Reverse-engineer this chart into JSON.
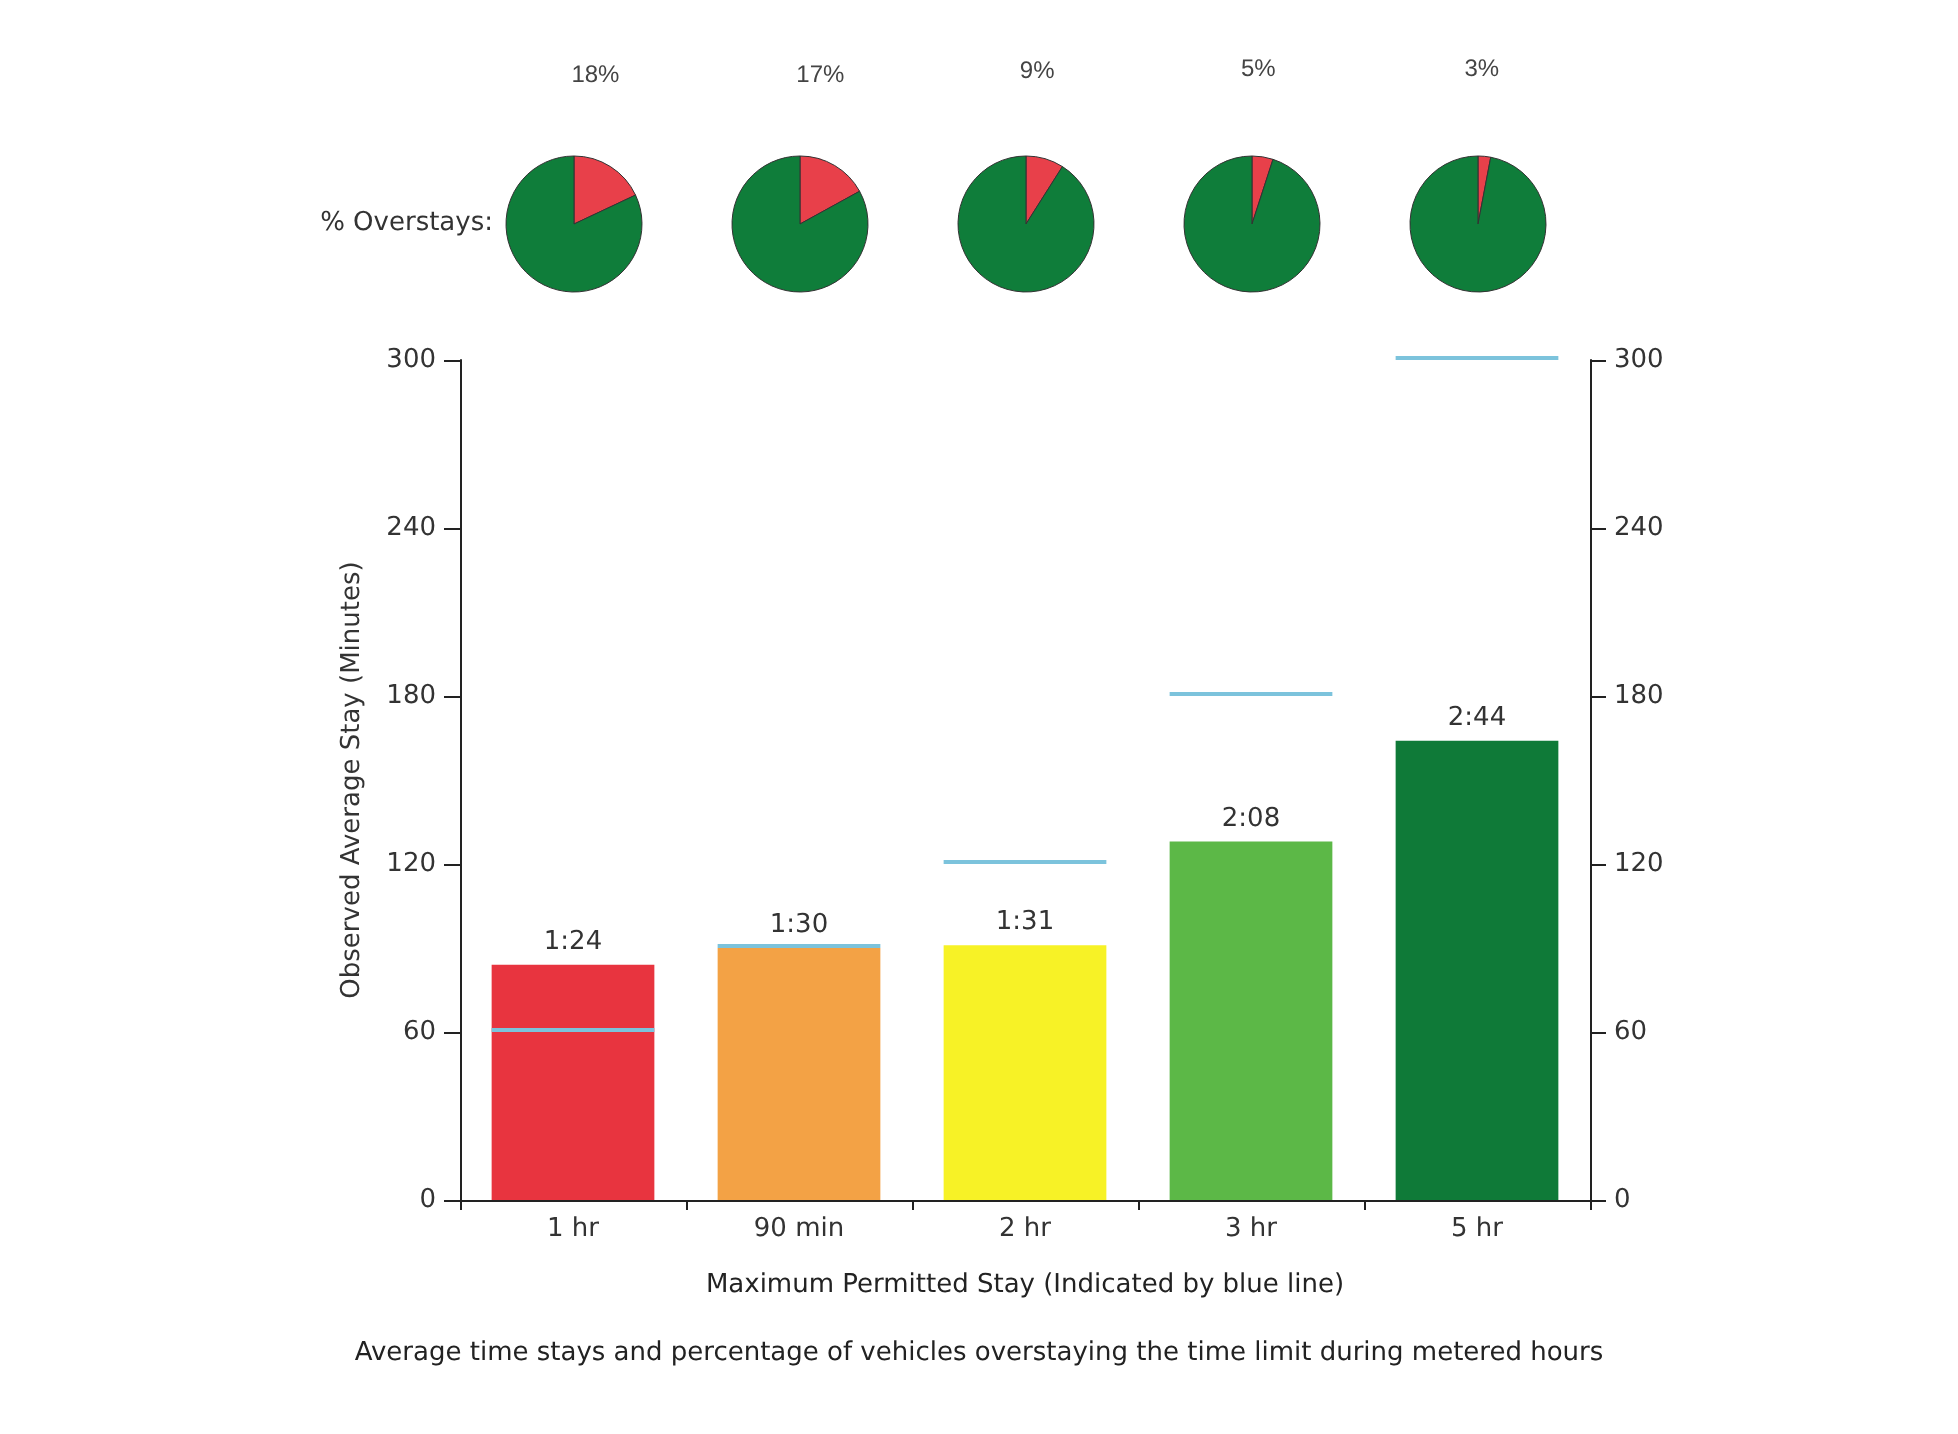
{
  "chart_data": [
    {
      "type": "pie",
      "categories": [
        null,
        null
      ],
      "values": [
        18,
        82
      ],
      "colors": [
        "#e8404a",
        "#0f7d3a"
      ],
      "value_labels": [
        "18%",
        null
      ],
      "annotations": [
        "% Overstays:"
      ]
    },
    {
      "type": "pie",
      "categories": [
        null,
        null
      ],
      "values": [
        17,
        83
      ],
      "colors": [
        "#e8404a",
        "#0f7d3a"
      ],
      "value_labels": [
        "17%",
        null
      ]
    },
    {
      "type": "pie",
      "categories": [
        null,
        null
      ],
      "values": [
        9,
        91
      ],
      "colors": [
        "#e8404a",
        "#0f7d3a"
      ],
      "value_labels": [
        "9%",
        null
      ]
    },
    {
      "type": "pie",
      "categories": [
        null,
        null
      ],
      "values": [
        5,
        95
      ],
      "colors": [
        "#e8404a",
        "#0f7d3a"
      ],
      "value_labels": [
        "5%",
        null
      ]
    },
    {
      "type": "pie",
      "categories": [
        null,
        null
      ],
      "values": [
        3,
        97
      ],
      "colors": [
        "#e8404a",
        "#0f7d3a"
      ],
      "value_labels": [
        "3%",
        null
      ]
    },
    {
      "type": "bar",
      "xlabel": "Maximum Permitted Stay (Indicated by blue line)",
      "ylabel": "Observed Average Stay (Minutes)",
      "categories": [
        "1 hr",
        "90 min",
        "2 hr",
        "3 hr",
        "5 hr"
      ],
      "series": [
        {
          "type": "bar",
          "colors": [
            "#e8343f",
            "#f3a245",
            "#f7f226",
            "#5cb847",
            "#0f7a38"
          ],
          "values": [
            84,
            90,
            91,
            128,
            164
          ],
          "value_labels": [
            "1:24",
            "1:30",
            "1:31",
            "2:08",
            "2:44"
          ]
        },
        {
          "type": "bar",
          "color": "#7cc3dc",
          "base": [
            60,
            90,
            120,
            180,
            300
          ],
          "values": [
            0,
            0,
            0,
            0,
            0
          ]
        }
      ],
      "ylim": [
        0,
        300
      ],
      "yticks": [
        0,
        60,
        120,
        180,
        240,
        300
      ],
      "y2lim": [
        0,
        300
      ],
      "y2ticks": [
        0,
        60,
        120,
        180,
        240,
        300
      ],
      "grid": false,
      "annotations": [
        "Average time stays and percentage of vehicles overstaying the time limit during metered hours"
      ]
    }
  ]
}
